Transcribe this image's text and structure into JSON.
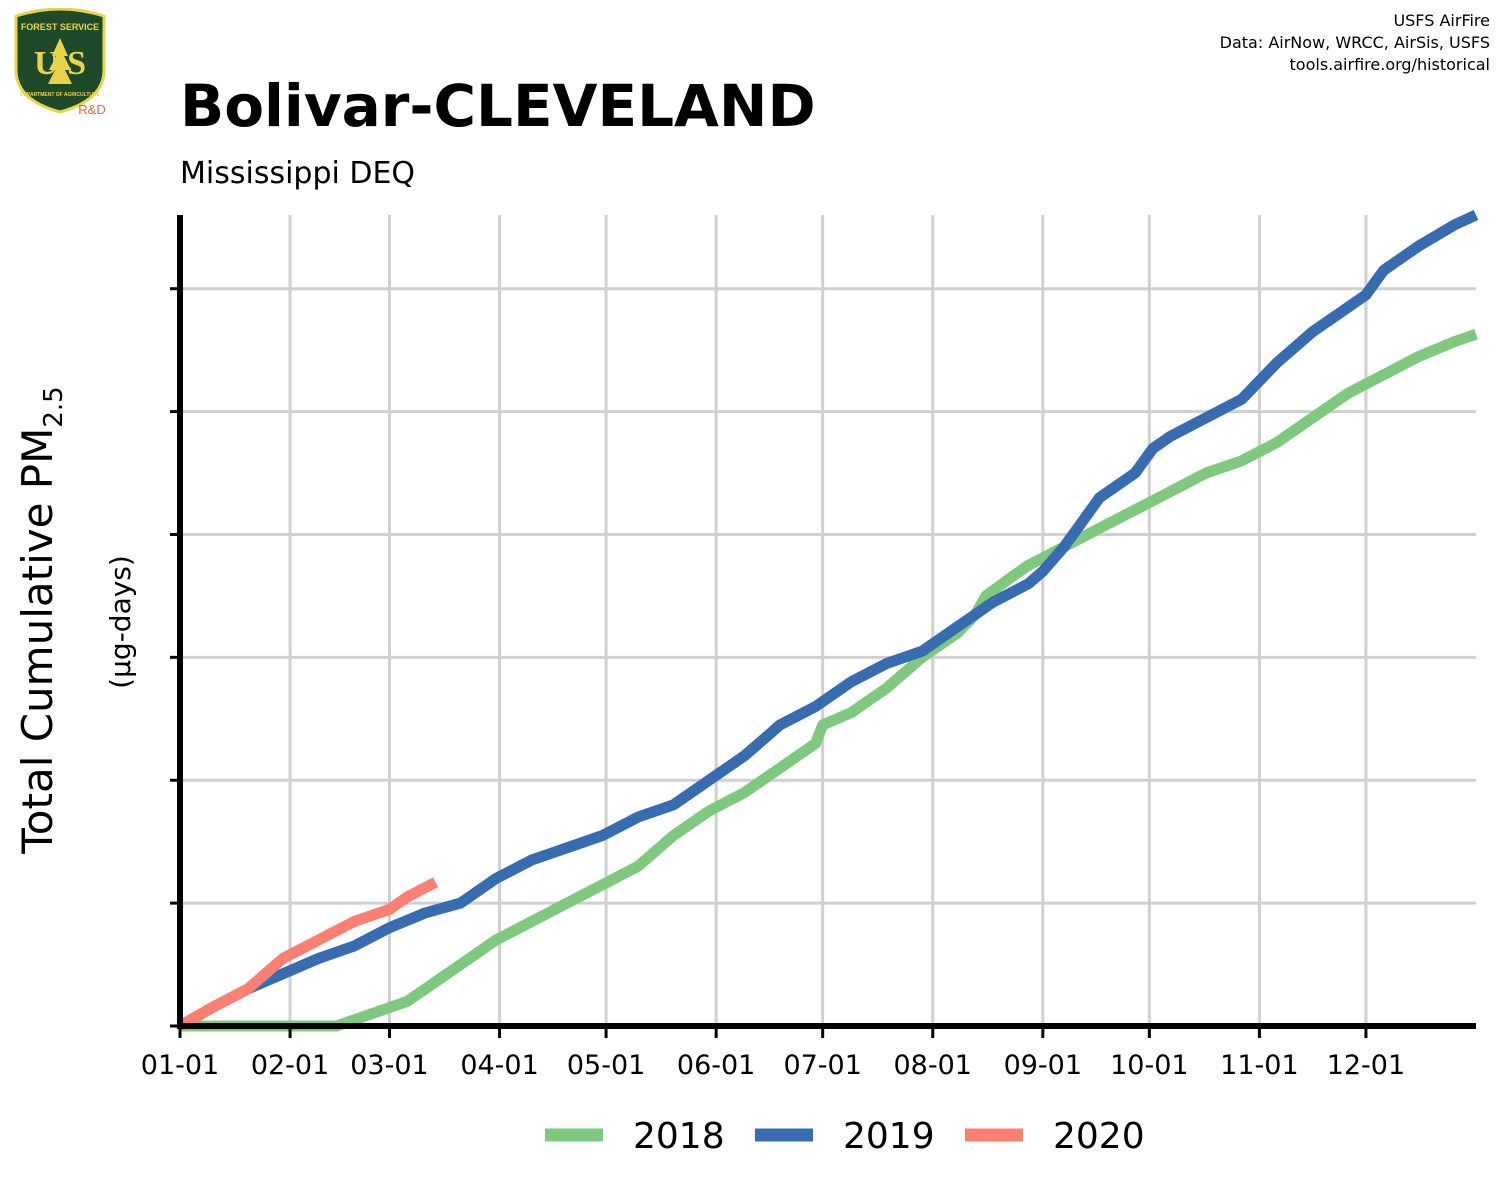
{
  "logo": {
    "top_text": "FOREST SERVICE",
    "letters": "U S",
    "bottom_text": "DEPARTMENT OF AGRICULTURE",
    "badge": "R&D",
    "colors": {
      "shield": "#1e4a2a",
      "gold": "#e8d44a",
      "badge": "#e8624a"
    }
  },
  "credits": {
    "line1": "USFS AirFire",
    "line2": "Data: AirNow, WRCC, AirSis, USFS",
    "line3": "tools.airfire.org/historical"
  },
  "chart_data": {
    "type": "line",
    "title": "Bolivar-CLEVELAND",
    "subtitle": "Mississippi DEQ",
    "ylabel_main": "Total Cumulative PM",
    "ylabel_sub": "2.5",
    "ylabel_units": "(µg-days)",
    "xlabel": "",
    "x_tick_labels": [
      "01-01",
      "02-01",
      "03-01",
      "04-01",
      "05-01",
      "06-01",
      "07-01",
      "08-01",
      "09-01",
      "10-01",
      "11-01",
      "12-01"
    ],
    "x_ticks_day": [
      1,
      32,
      60,
      91,
      121,
      152,
      182,
      213,
      244,
      274,
      305,
      335
    ],
    "xlim": [
      1,
      366
    ],
    "ylim": [
      0,
      6.6
    ],
    "y_tick_labels_shown": false,
    "grid": true,
    "legend_position": "bottom",
    "series": [
      {
        "name": "2018",
        "color": "#7fc97f",
        "x": [
          1,
          15,
          30,
          45,
          50,
          55,
          60,
          65,
          70,
          75,
          80,
          85,
          90,
          100,
          110,
          120,
          130,
          140,
          150,
          160,
          170,
          180,
          182,
          190,
          200,
          210,
          220,
          225,
          228,
          235,
          240,
          250,
          260,
          270,
          280,
          290,
          300,
          310,
          320,
          330,
          340,
          350,
          360,
          366
        ],
        "y": [
          0,
          0,
          0,
          0,
          0.05,
          0.1,
          0.15,
          0.2,
          0.3,
          0.4,
          0.5,
          0.6,
          0.7,
          0.85,
          1.0,
          1.15,
          1.3,
          1.55,
          1.75,
          1.9,
          2.1,
          2.3,
          2.45,
          2.55,
          2.75,
          3.0,
          3.2,
          3.35,
          3.5,
          3.65,
          3.75,
          3.9,
          4.05,
          4.2,
          4.35,
          4.5,
          4.6,
          4.75,
          4.95,
          5.15,
          5.3,
          5.45,
          5.57,
          5.63
        ]
      },
      {
        "name": "2019",
        "color": "#386cb0",
        "x": [
          1,
          10,
          20,
          32,
          40,
          50,
          60,
          70,
          80,
          90,
          100,
          110,
          120,
          130,
          140,
          150,
          160,
          170,
          180,
          190,
          200,
          210,
          220,
          230,
          240,
          244,
          250,
          260,
          270,
          275,
          280,
          290,
          300,
          305,
          310,
          320,
          330,
          335,
          340,
          350,
          360,
          366
        ],
        "y": [
          0,
          0.15,
          0.3,
          0.45,
          0.55,
          0.65,
          0.8,
          0.92,
          1.0,
          1.2,
          1.35,
          1.45,
          1.55,
          1.7,
          1.8,
          2.0,
          2.2,
          2.45,
          2.6,
          2.8,
          2.95,
          3.05,
          3.25,
          3.45,
          3.6,
          3.7,
          3.9,
          4.3,
          4.5,
          4.7,
          4.8,
          4.95,
          5.1,
          5.25,
          5.4,
          5.65,
          5.85,
          5.95,
          6.15,
          6.35,
          6.52,
          6.6
        ]
      },
      {
        "name": "2020",
        "color": "#fb8072",
        "x": [
          1,
          10,
          20,
          30,
          40,
          50,
          60,
          65,
          73
        ],
        "y": [
          0,
          0.15,
          0.3,
          0.55,
          0.7,
          0.85,
          0.95,
          1.05,
          1.17
        ]
      }
    ]
  }
}
